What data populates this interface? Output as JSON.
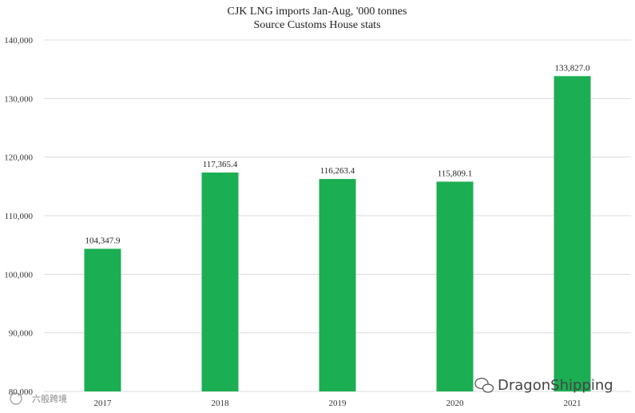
{
  "chart_data": {
    "type": "bar",
    "title": "CJK LNG imports Jan-Aug, '000 tonnes",
    "subtitle": "Source Customs House stats",
    "categories": [
      "2017",
      "2018",
      "2019",
      "2020",
      "2021"
    ],
    "values": [
      104347.9,
      117365.4,
      116263.4,
      115809.1,
      133827.0
    ],
    "value_labels": [
      "104,347.9",
      "117,365.4",
      "116,263.4",
      "115,809.1",
      "133,827.0"
    ],
    "ylim": [
      80000,
      140000
    ],
    "yticks": [
      80000,
      90000,
      100000,
      110000,
      120000,
      130000,
      140000
    ],
    "ytick_labels": [
      "80,000",
      "90,000",
      "100,000",
      "110,000",
      "120,000",
      "130,000",
      "140,000"
    ],
    "grid": true,
    "bar_color": "#1cae52",
    "xlabel": "",
    "ylabel": ""
  },
  "watermark": {
    "brand": "DragonShipping",
    "icon": "wechat-icon",
    "cn_text": "六般跨境"
  }
}
